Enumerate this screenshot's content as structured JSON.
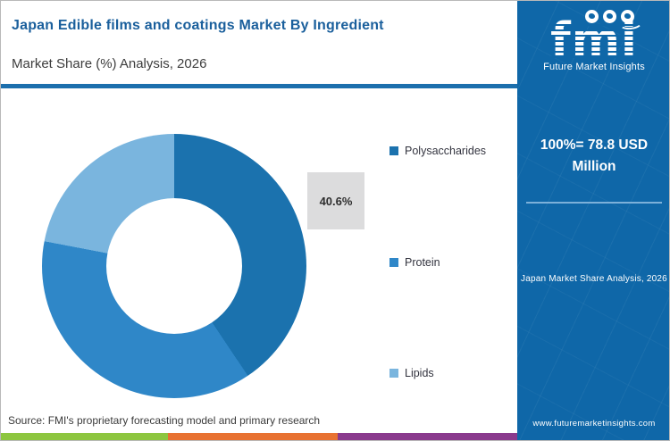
{
  "header": {
    "title": "Japan Edible films and coatings Market By Ingredient",
    "subtitle": "Market Share (%) Analysis, 2026"
  },
  "chart_data": {
    "type": "pie",
    "subtype": "donut",
    "categories": [
      "Polysaccharides",
      "Protein",
      "Lipids"
    ],
    "values": [
      40.6,
      37.4,
      22.0
    ],
    "labeled_values": {
      "Polysaccharides": "40.6%"
    },
    "colors": [
      "#1b72ae",
      "#2f87c8",
      "#7ab5de"
    ],
    "start_angle_deg": 0,
    "direction": "clockwise",
    "legend_position": "right",
    "title": "Japan Edible films and coatings Market By Ingredient",
    "subtitle": "Market Share (%) Analysis, 2026",
    "total_note": "100%= 78.8 USD Million"
  },
  "callout": {
    "value": "40.6%"
  },
  "sidebar": {
    "logo": {
      "text": "fmi",
      "tagline": "Future Market Insights"
    },
    "total": "100%= 78.8 USD Million",
    "caption": "Japan Market Share Analysis, 2026",
    "website": "www.futuremarketinsights.com",
    "background_color": "#0f67a8"
  },
  "footer": {
    "source": "Source: FMI's proprietary forecasting model and primary research",
    "stripe": {
      "colors": [
        "#8dc63f",
        "#e87232",
        "#8a3a8d"
      ],
      "widths": [
        187,
        190,
        201
      ]
    }
  }
}
